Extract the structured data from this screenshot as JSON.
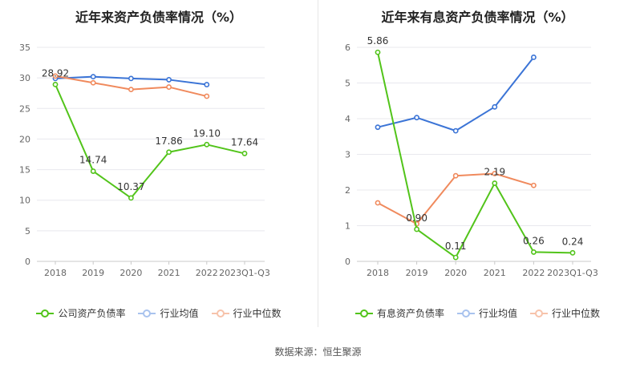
{
  "colors": {
    "company": "#52c41a",
    "avg": "#3b74d6",
    "median": "#f08a5d",
    "grid": "#e8e8ee",
    "axis": "#666666"
  },
  "source_label": "数据来源：恒生聚源",
  "chart_data": [
    {
      "type": "line",
      "title": "近年来资产负债率情况（%）",
      "categories": [
        "2018",
        "2019",
        "2020",
        "2021",
        "2022",
        "2023Q1-Q3"
      ],
      "ylim": [
        0,
        35
      ],
      "yticks": [
        "0",
        "5",
        "10",
        "15",
        "20",
        "25",
        "30",
        "35"
      ],
      "grid": true,
      "legend_position": "bottom",
      "legend": [
        "公司资产负债率",
        "行业均值",
        "行业中位数"
      ],
      "series": [
        {
          "name": "公司资产负债率",
          "key": "company",
          "values": [
            28.92,
            14.74,
            10.37,
            17.86,
            19.1,
            17.64
          ],
          "labels": [
            "28.92",
            "14.74",
            "10.37",
            "17.86",
            "19.10",
            "17.64"
          ]
        },
        {
          "name": "行业均值",
          "key": "avg",
          "values": [
            29.9,
            30.2,
            29.9,
            29.7,
            28.9,
            null
          ]
        },
        {
          "name": "行业中位数",
          "key": "median",
          "values": [
            30.3,
            29.2,
            28.1,
            28.5,
            27.0,
            null
          ]
        }
      ]
    },
    {
      "type": "line",
      "title": "近年来有息资产负债率情况（%）",
      "categories": [
        "2018",
        "2019",
        "2020",
        "2021",
        "2022",
        "2023Q1-Q3"
      ],
      "ylim": [
        0,
        6
      ],
      "yticks": [
        "0",
        "1",
        "2",
        "3",
        "4",
        "5",
        "6"
      ],
      "grid": true,
      "legend_position": "bottom",
      "legend": [
        "有息资产负债率",
        "行业均值",
        "行业中位数"
      ],
      "series": [
        {
          "name": "有息资产负债率",
          "key": "company",
          "values": [
            5.86,
            0.9,
            0.11,
            2.19,
            0.26,
            0.24
          ],
          "labels": [
            "5.86",
            "0.90",
            "0.11",
            "2.19",
            "0.26",
            "0.24"
          ]
        },
        {
          "name": "行业均值",
          "key": "avg",
          "values": [
            3.76,
            4.03,
            3.66,
            4.33,
            5.72,
            null
          ]
        },
        {
          "name": "行业中位数",
          "key": "median",
          "values": [
            1.64,
            1.05,
            2.4,
            2.46,
            2.13,
            null
          ]
        }
      ]
    }
  ]
}
